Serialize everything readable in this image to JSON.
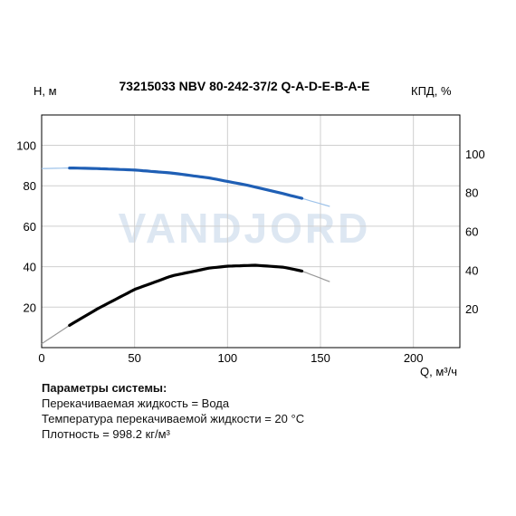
{
  "chart_data": {
    "type": "line",
    "title": "73215033 NBV 80-242-37/2 Q-A-D-E-B-A-E",
    "xlabel": "Q, м³/ч",
    "ylabel": "H, м",
    "y2label": "КПД, %",
    "xlim": [
      0,
      225
    ],
    "ylim": [
      0,
      115
    ],
    "xticks": [
      "0",
      "50",
      "100",
      "150",
      "200"
    ],
    "yticks": [
      "20",
      "40",
      "60",
      "80",
      "100"
    ],
    "y2lim": [
      0,
      120
    ],
    "y2ticks": [
      "20",
      "40",
      "60",
      "80",
      "100"
    ],
    "grid": true,
    "watermark": "VANDJORD",
    "colors": {
      "head": "#1f5fb5",
      "efficiency": "#000000",
      "head_ext": "#9ec3ea",
      "efficiency_ext": "#999999",
      "watermark": "#dde7f2"
    },
    "series": [
      {
        "key": "head",
        "axis": "left",
        "x": [
          0,
          15,
          30,
          50,
          70,
          90,
          110,
          130,
          140,
          155
        ],
        "y": [
          88.5,
          88.8,
          88.5,
          87.8,
          86.3,
          83.9,
          80.4,
          76.1,
          73.8,
          69.8
        ],
        "operating_range": [
          15,
          140
        ]
      },
      {
        "key": "efficiency",
        "axis": "right",
        "x": [
          0,
          15,
          30,
          50,
          70,
          90,
          100,
          115,
          130,
          140,
          155
        ],
        "y": [
          2,
          11.5,
          20,
          30,
          37,
          41,
          42,
          42.5,
          41.5,
          39.5,
          34
        ],
        "operating_range": [
          15,
          140
        ]
      }
    ]
  },
  "params": {
    "heading": "Параметры системы:",
    "lines": [
      "Перекачиваемая жидкость = Вода",
      "Температура перекачиваемой жидкости = 20 °C",
      "Плотность = 998.2 кг/м³"
    ]
  }
}
